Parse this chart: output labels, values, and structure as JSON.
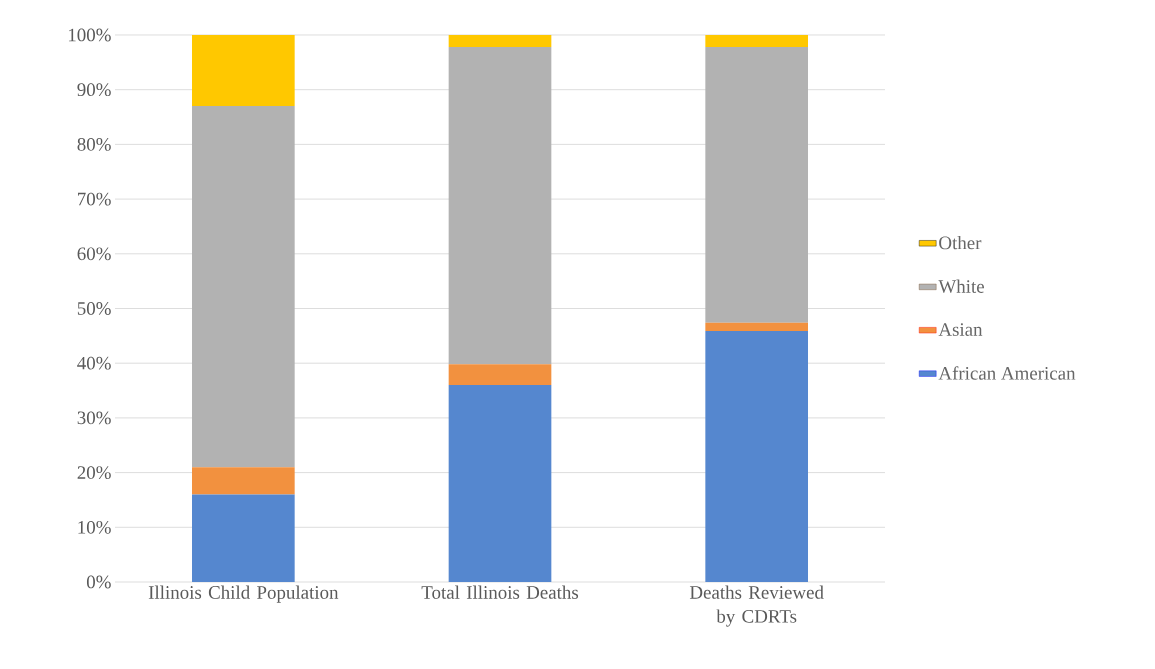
{
  "chart_data": {
    "type": "bar",
    "stacked": true,
    "categories": [
      "Illinois Child Population",
      "Total Illinois Deaths",
      "Deaths Reviewed by CDRTs"
    ],
    "series": [
      {
        "name": "African American",
        "color": "#5587cf",
        "values": [
          16,
          36,
          45.9
        ]
      },
      {
        "name": "Asian",
        "color": "#f2913f",
        "values": [
          5,
          3.8,
          1.5
        ]
      },
      {
        "name": "White",
        "color": "#b2b2b2",
        "values": [
          66,
          58,
          50.4
        ]
      },
      {
        "name": "Other",
        "color": "#ffc800",
        "values": [
          13,
          2.2,
          2.2
        ]
      }
    ],
    "ylim": [
      0,
      100
    ],
    "yticks": [
      {
        "value": 0,
        "label": "0%"
      },
      {
        "value": 10,
        "label": "10%"
      },
      {
        "value": 20,
        "label": "20%"
      },
      {
        "value": 30,
        "label": "30%"
      },
      {
        "value": 40,
        "label": "40%"
      },
      {
        "value": 50,
        "label": "50%"
      },
      {
        "value": 60,
        "label": "60%"
      },
      {
        "value": 70,
        "label": "70%"
      },
      {
        "value": 80,
        "label": "80%"
      },
      {
        "value": 90,
        "label": "90%"
      },
      {
        "value": 100,
        "label": "100%"
      }
    ],
    "grid": "y",
    "legend": "right"
  }
}
